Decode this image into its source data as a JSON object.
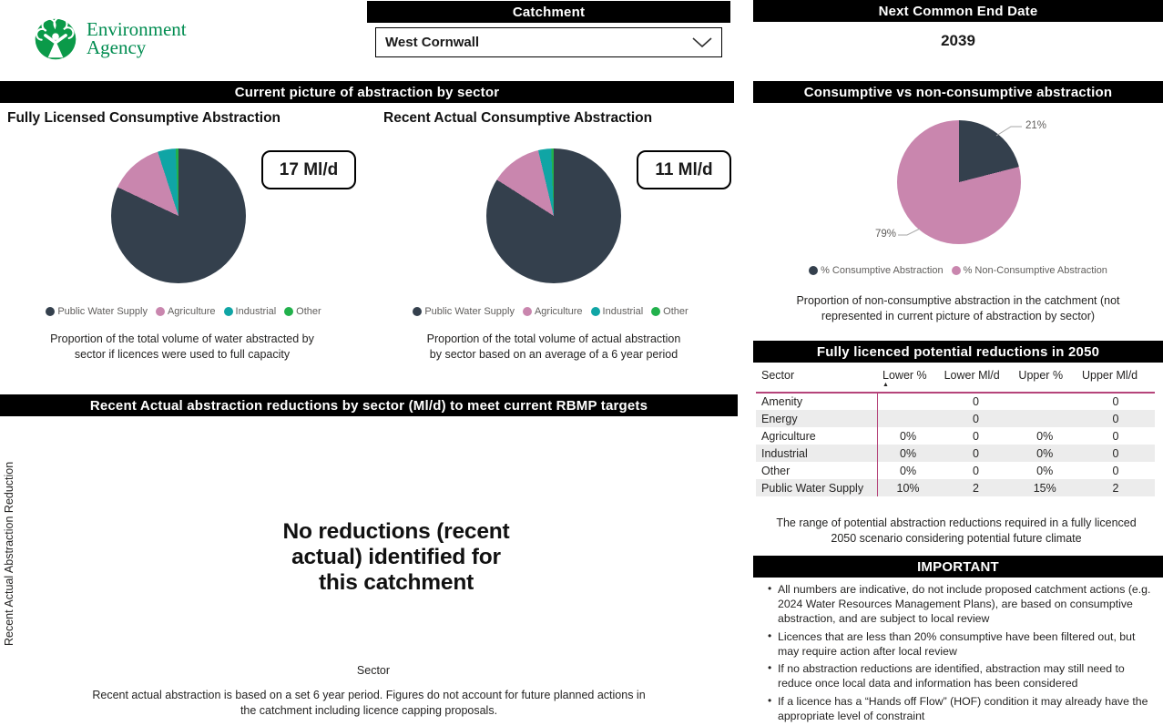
{
  "colors": {
    "bar_bg": "#000000",
    "bar_text": "#ffffff",
    "table_rule": "#B5447A",
    "row_alt": "#ECECEC",
    "public_water_supply": "#34404D",
    "agriculture": "#C986AE",
    "industrial": "#10A5A5",
    "other": "#22B14C",
    "ea_green": "#0B9A49",
    "ea_text_green": "#008C50"
  },
  "logo": {
    "line1": "Environment",
    "line2": "Agency"
  },
  "header": {
    "catchment_title": "Catchment",
    "catchment_value": "West Cornwall",
    "end_date_title": "Next Common End Date",
    "end_date_value": "2039"
  },
  "abstraction_section": {
    "title": "Current picture of abstraction by sector",
    "fully_licensed": {
      "title": "Fully Licensed Consumptive Abstraction",
      "badge": "17 Ml/d",
      "caption": "Proportion of the total volume of water abstracted by\nsector if licences were used to full capacity"
    },
    "recent_actual": {
      "title": "Recent Actual Consumptive Abstraction",
      "badge": "11 Ml/d",
      "caption": "Proportion of the total volume of actual abstraction\nby sector based on an average of a 6 year period"
    }
  },
  "consumptive_section": {
    "title": "Consumptive vs non-consumptive abstraction",
    "caption": "Proportion of non-consumptive abstraction in the catchment (not\nrepresented in current picture of abstraction by sector)"
  },
  "reductions_table": {
    "title": "Fully licenced potential reductions in 2050",
    "columns": [
      "Sector",
      "Lower %",
      "Lower Ml/d",
      "Upper %",
      "Upper Ml/d"
    ],
    "sort_column": 1,
    "rows": [
      [
        "Amenity",
        "",
        "0",
        "",
        "0"
      ],
      [
        "Energy",
        "",
        "0",
        "",
        "0"
      ],
      [
        "Agriculture",
        "0%",
        "0",
        "0%",
        "0"
      ],
      [
        "Industrial",
        "0%",
        "0",
        "0%",
        "0"
      ],
      [
        "Other",
        "0%",
        "0",
        "0%",
        "0"
      ],
      [
        "Public Water Supply",
        "10%",
        "2",
        "15%",
        "2"
      ]
    ],
    "caption": "The range of potential abstraction reductions required in a fully licenced\n2050 scenario considering potential future climate"
  },
  "important": {
    "title": "IMPORTANT",
    "bullets": [
      "All numbers are indicative, do not include proposed catchment actions (e.g. 2024 Water Resources Management Plans), are based on consumptive abstraction, and are subject to local review",
      "Licences that are less than 20% consumptive have been filtered out, but may require action after local review",
      "If no abstraction reductions are identified, abstraction may still need to reduce once local data and information has been considered",
      "If a licence has a “Hands off Flow” (HOF) condition it may already have the appropriate level of constraint"
    ]
  },
  "rbmp_section": {
    "title": "Recent Actual abstraction reductions by sector (Ml/d) to meet current RBMP targets",
    "y_axis_label": "Recent Actual Abstraction Reduction",
    "message": "No reductions (recent\nactual) identified for\nthis catchment",
    "x_axis_label": "Sector",
    "footnote": "Recent actual abstraction is based on a set 6 year period. Figures do not account for future planned actions in\nthe catchment including licence capping proposals."
  },
  "chart_data": [
    {
      "type": "pie",
      "title": "Fully Licensed Consumptive Abstraction",
      "total_label": "17 Ml/d",
      "slices": [
        {
          "label": "Public Water Supply",
          "pct": 82.0,
          "color": "#34404D"
        },
        {
          "label": "Agriculture",
          "pct": 13.0,
          "color": "#C986AE"
        },
        {
          "label": "Industrial",
          "pct": 4.3,
          "color": "#10A5A5"
        },
        {
          "label": "Other",
          "pct": 0.7,
          "color": "#22B14C"
        }
      ],
      "legend_position": "bottom"
    },
    {
      "type": "pie",
      "title": "Recent Actual Consumptive Abstraction",
      "total_label": "11 Ml/d",
      "slices": [
        {
          "label": "Public Water Supply",
          "pct": 84.0,
          "color": "#34404D"
        },
        {
          "label": "Agriculture",
          "pct": 12.3,
          "color": "#C986AE"
        },
        {
          "label": "Industrial",
          "pct": 3.1,
          "color": "#10A5A5"
        },
        {
          "label": "Other",
          "pct": 0.6,
          "color": "#22B14C"
        }
      ],
      "legend_position": "bottom"
    },
    {
      "type": "pie",
      "title": "Consumptive vs non-consumptive abstraction",
      "slices": [
        {
          "label": "% Consumptive Abstraction",
          "pct": 21,
          "pct_label": "21%",
          "color": "#34404D"
        },
        {
          "label": "% Non-Consumptive Abstraction",
          "pct": 79,
          "pct_label": "79%",
          "color": "#C986AE"
        }
      ],
      "legend_position": "bottom"
    },
    {
      "type": "table",
      "title": "Fully licenced potential reductions in 2050",
      "columns": [
        "Sector",
        "Lower %",
        "Lower Ml/d",
        "Upper %",
        "Upper Ml/d"
      ],
      "rows": [
        [
          "Amenity",
          "",
          "0",
          "",
          "0"
        ],
        [
          "Energy",
          "",
          "0",
          "",
          "0"
        ],
        [
          "Agriculture",
          "0%",
          "0",
          "0%",
          "0"
        ],
        [
          "Industrial",
          "0%",
          "0",
          "0%",
          "0"
        ],
        [
          "Other",
          "0%",
          "0",
          "0%",
          "0"
        ],
        [
          "Public Water Supply",
          "10%",
          "2",
          "15%",
          "2"
        ]
      ]
    }
  ]
}
